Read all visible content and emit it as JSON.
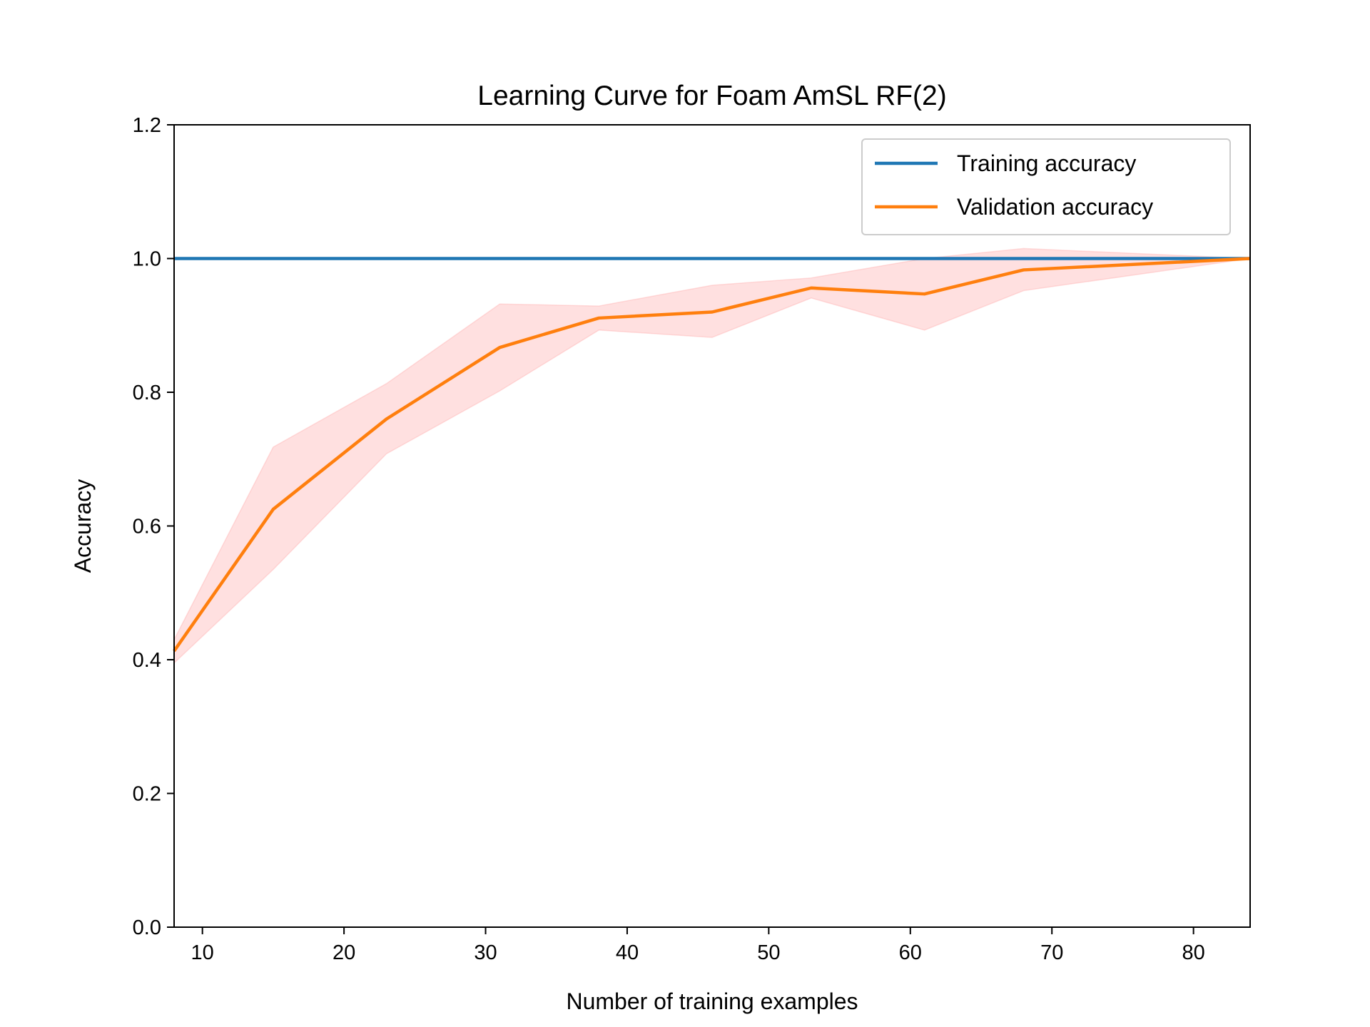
{
  "chart_data": {
    "type": "line",
    "title": "Learning Curve for Foam AmSL RF(2)",
    "xlabel": "Number of training examples",
    "ylabel": "Accuracy",
    "xlim": [
      8,
      84
    ],
    "ylim": [
      0.0,
      1.2
    ],
    "xticks": [
      10,
      20,
      30,
      40,
      50,
      60,
      70,
      80
    ],
    "yticks": [
      0.0,
      0.2,
      0.4,
      0.6,
      0.8,
      1.0,
      1.2
    ],
    "grid": false,
    "legend_position": "top-right",
    "x": [
      8,
      15,
      23,
      31,
      38,
      46,
      53,
      61,
      68,
      84
    ],
    "series": [
      {
        "name": "Training accuracy",
        "color": "#1f77b4",
        "values": [
          1.0,
          1.0,
          1.0,
          1.0,
          1.0,
          1.0,
          1.0,
          1.0,
          1.0,
          1.0
        ]
      },
      {
        "name": "Validation accuracy",
        "color": "#ff7f0e",
        "values": [
          0.413,
          0.625,
          0.76,
          0.867,
          0.911,
          0.92,
          0.956,
          0.947,
          0.983,
          1.0
        ],
        "band": {
          "color": "#ff9999",
          "lower": [
            0.395,
            0.535,
            0.708,
            0.802,
            0.893,
            0.882,
            0.941,
            0.893,
            0.952,
            1.0
          ],
          "upper": [
            0.43,
            0.718,
            0.813,
            0.932,
            0.929,
            0.96,
            0.971,
            1.0,
            1.015,
            1.0
          ]
        }
      }
    ]
  }
}
